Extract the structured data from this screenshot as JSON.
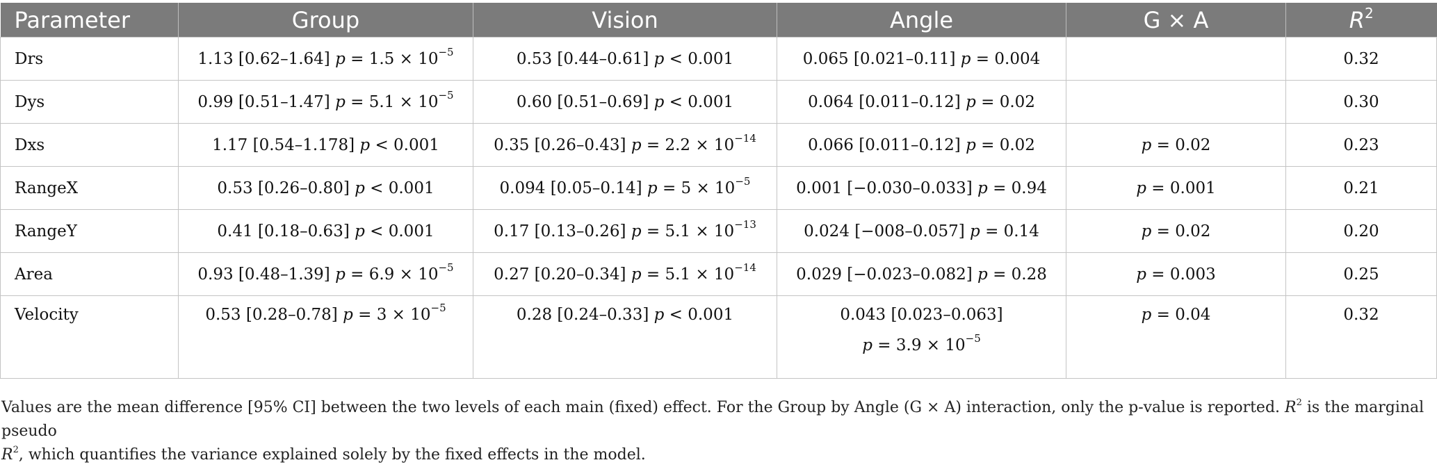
{
  "table": {
    "headers": {
      "parameter": "Parameter",
      "group": "Group",
      "vision": "Vision",
      "angle": "Angle",
      "gxa": "G × A",
      "r2_letter": "R",
      "r2_sup": "2"
    },
    "rows": [
      {
        "name": "Drs",
        "group": {
          "est": "1.13 [0.62–1.64]",
          "p_op": "= 1.5 × 10",
          "p_exp": "−5"
        },
        "vision": {
          "est": "0.53 [0.44–0.61]",
          "p_op": "< 0.001",
          "p_exp": ""
        },
        "angle": {
          "est": "0.065 [0.021–0.11]",
          "p_op": "= 0.004",
          "p_exp": ""
        },
        "gxa": "",
        "r2": "0.32"
      },
      {
        "name": "Dys",
        "group": {
          "est": "0.99 [0.51–1.47]",
          "p_op": "= 5.1 × 10",
          "p_exp": "−5"
        },
        "vision": {
          "est": "0.60 [0.51–0.69]",
          "p_op": "< 0.001",
          "p_exp": ""
        },
        "angle": {
          "est": "0.064 [0.011–0.12]",
          "p_op": "= 0.02",
          "p_exp": ""
        },
        "gxa": "",
        "r2": "0.30"
      },
      {
        "name": "Dxs",
        "group": {
          "est": "1.17 [0.54–1.178]",
          "p_op": "< 0.001",
          "p_exp": ""
        },
        "vision": {
          "est": "0.35 [0.26–0.43]",
          "p_op": "= 2.2 × 10",
          "p_exp": "−14"
        },
        "angle": {
          "est": "0.066 [0.011–0.12]",
          "p_op": "= 0.02",
          "p_exp": ""
        },
        "gxa": "= 0.02",
        "r2": "0.23"
      },
      {
        "name": "RangeX",
        "group": {
          "est": "0.53 [0.26–0.80]",
          "p_op": "< 0.001",
          "p_exp": ""
        },
        "vision": {
          "est": "0.094 [0.05–0.14]",
          "p_op": "= 5 × 10",
          "p_exp": "−5"
        },
        "angle": {
          "est": "0.001 [−0.030–0.033]",
          "p_op": "= 0.94",
          "p_exp": ""
        },
        "gxa": "= 0.001",
        "r2": "0.21"
      },
      {
        "name": "RangeY",
        "group": {
          "est": "0.41 [0.18–0.63]",
          "p_op": "< 0.001",
          "p_exp": ""
        },
        "vision": {
          "est": "0.17 [0.13–0.26]",
          "p_op": "= 5.1 × 10",
          "p_exp": "−13"
        },
        "angle": {
          "est": "0.024 [−008–0.057]",
          "p_op": "= 0.14",
          "p_exp": ""
        },
        "gxa": "= 0.02",
        "r2": "0.20"
      },
      {
        "name": "Area",
        "group": {
          "est": "0.93 [0.48–1.39]",
          "p_op": "= 6.9 × 10",
          "p_exp": "−5"
        },
        "vision": {
          "est": "0.27 [0.20–0.34]",
          "p_op": "= 5.1 × 10",
          "p_exp": "−14"
        },
        "angle": {
          "est": "0.029 [−0.023–0.082]",
          "p_op": "= 0.28",
          "p_exp": ""
        },
        "gxa": "= 0.003",
        "r2": "0.25"
      },
      {
        "name": "Velocity",
        "group": {
          "est": "0.53 [0.28–0.78]",
          "p_op": "= 3 × 10",
          "p_exp": "−5"
        },
        "vision": {
          "est": "0.28 [0.24–0.33]",
          "p_op": "< 0.001",
          "p_exp": ""
        },
        "angle": {
          "est": "0.043 [0.023–0.063]",
          "p_op": "= 3.9 × 10",
          "p_exp": "−5"
        },
        "gxa": "= 0.04",
        "r2": "0.32"
      }
    ]
  },
  "p_letter": "p",
  "footnote": {
    "part1": "Values are the mean difference [95% CI] between the two levels of each main (fixed) effect. For the Group by Angle (G × A) interaction, only the p-value is reported. ",
    "r_letter": "R",
    "sup": "2",
    "part2": " is the marginal pseudo ",
    "part3": ", which quantifies the variance explained solely by the fixed effects in the model."
  }
}
